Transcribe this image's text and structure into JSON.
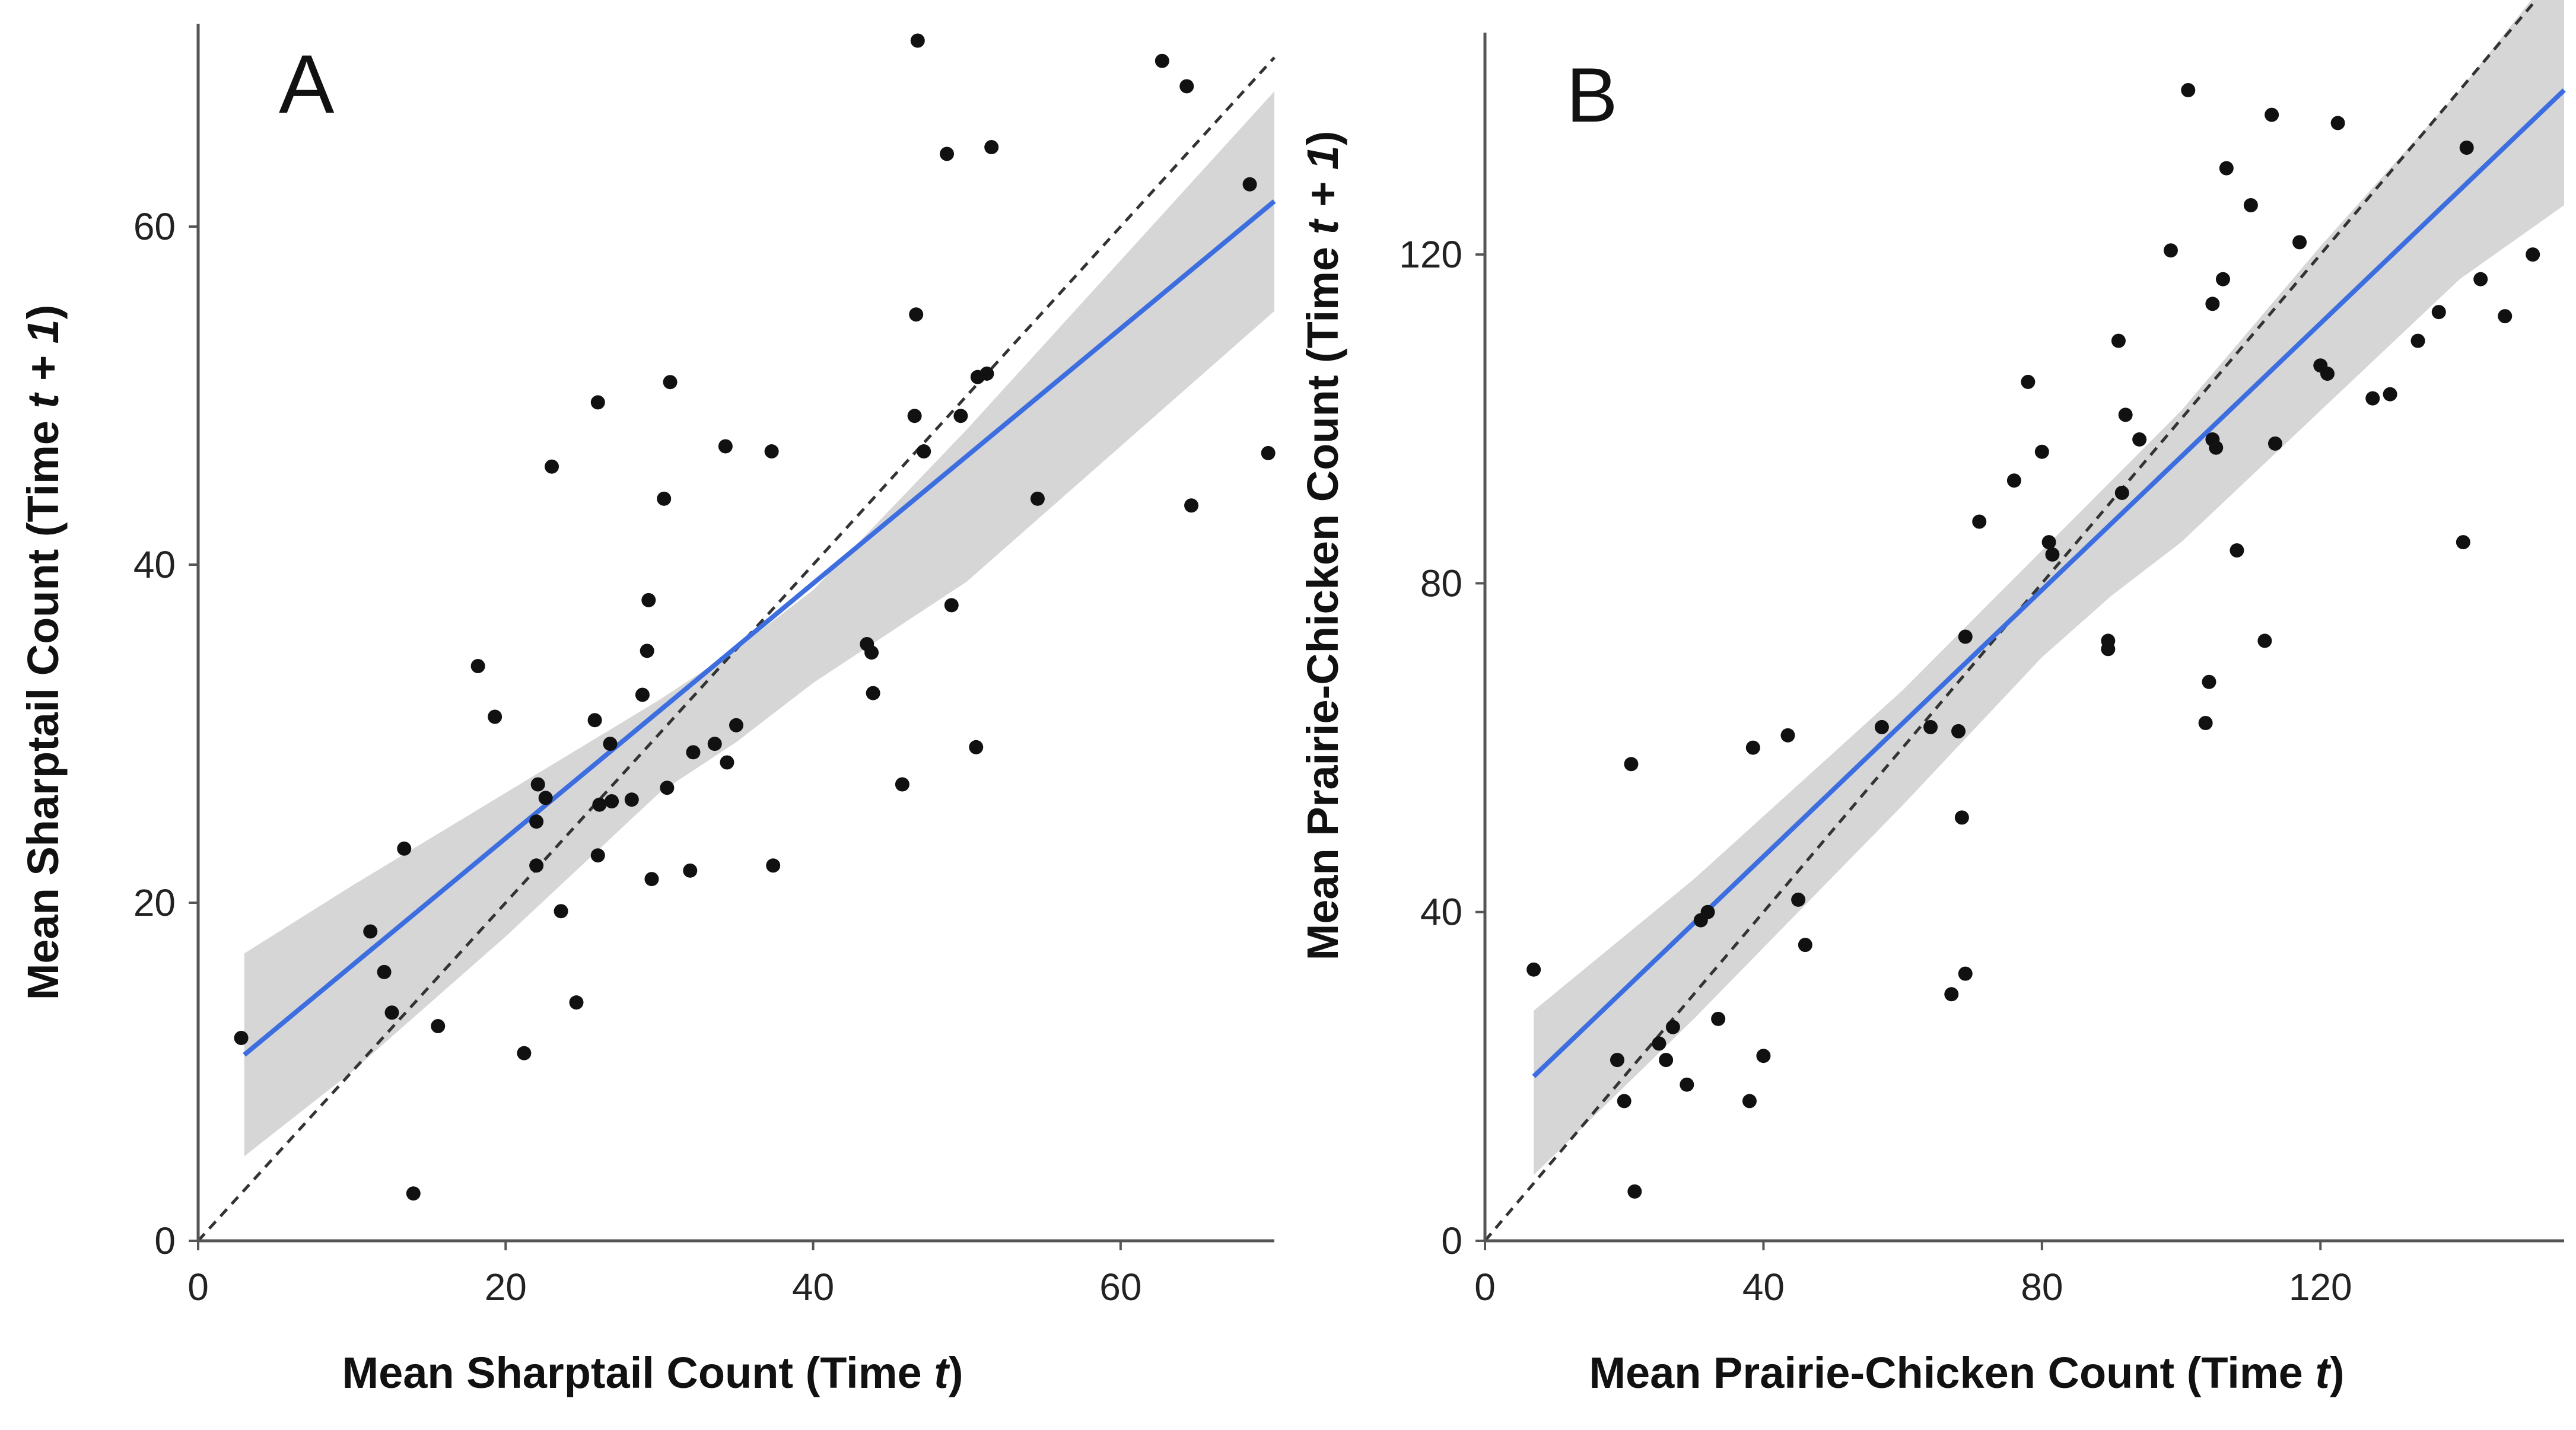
{
  "figure": {
    "panels_label": "Two-panel scatter figure"
  },
  "chart_data": [
    {
      "type": "scatter",
      "panel_label": "A",
      "title": "",
      "xlabel": "Mean Sharptail Count (Time t)",
      "xlabel_parts": [
        "Mean Sharptail Count (Time ",
        "t",
        ")"
      ],
      "ylabel": "Mean Sharptail Count (Time t + 1)",
      "ylabel_parts": [
        "Mean Sharptail Count (Time ",
        "t + 1",
        ")"
      ],
      "xlim": [
        0,
        70
      ],
      "ylim": [
        0,
        72
      ],
      "xticks": [
        0,
        20,
        40,
        60
      ],
      "yticks": [
        0,
        20,
        40,
        60
      ],
      "grid": false,
      "colors": {
        "points": "#111111",
        "fit": "#3d6ee0",
        "band": "#d6d6d6",
        "identity": "#333333",
        "axis": "#555555"
      },
      "fit_line": {
        "label": "linear fit",
        "x": [
          3,
          70
        ],
        "y": [
          11,
          61.5
        ]
      },
      "confidence_band": {
        "x": [
          3,
          10,
          20,
          30,
          35,
          40,
          50,
          60,
          70
        ],
        "upper": [
          17,
          21,
          26.5,
          32,
          35,
          38.5,
          48,
          58,
          68
        ],
        "lower": [
          5,
          10,
          18,
          26.5,
          29.5,
          33,
          39,
          47,
          55
        ]
      },
      "identity_line": {
        "label": "1:1 line",
        "x": [
          0,
          70
        ],
        "y": [
          0,
          70
        ]
      },
      "points": [
        [
          2.8,
          12.0
        ],
        [
          11.2,
          18.3
        ],
        [
          12.1,
          15.9
        ],
        [
          12.6,
          13.5
        ],
        [
          13.4,
          23.2
        ],
        [
          14.0,
          2.8
        ],
        [
          15.6,
          12.7
        ],
        [
          18.2,
          34.0
        ],
        [
          19.3,
          31.0
        ],
        [
          21.2,
          11.1
        ],
        [
          22.0,
          22.2
        ],
        [
          22.0,
          24.8
        ],
        [
          22.1,
          27.0
        ],
        [
          22.6,
          26.2
        ],
        [
          23.0,
          45.8
        ],
        [
          23.6,
          19.5
        ],
        [
          24.6,
          14.1
        ],
        [
          25.8,
          30.8
        ],
        [
          26.0,
          49.6
        ],
        [
          26.0,
          22.8
        ],
        [
          26.1,
          25.8
        ],
        [
          26.8,
          29.4
        ],
        [
          26.9,
          26.0
        ],
        [
          28.2,
          26.1
        ],
        [
          28.9,
          32.3
        ],
        [
          29.2,
          34.9
        ],
        [
          29.3,
          37.9
        ],
        [
          29.5,
          21.4
        ],
        [
          30.3,
          43.9
        ],
        [
          30.5,
          26.8
        ],
        [
          30.7,
          50.8
        ],
        [
          32.0,
          21.9
        ],
        [
          32.2,
          28.9
        ],
        [
          33.6,
          29.4
        ],
        [
          34.3,
          47.0
        ],
        [
          34.4,
          28.3
        ],
        [
          35.0,
          30.5
        ],
        [
          37.3,
          46.7
        ],
        [
          37.4,
          22.2
        ],
        [
          43.5,
          35.3
        ],
        [
          43.8,
          34.8
        ],
        [
          43.9,
          32.4
        ],
        [
          45.8,
          27.0
        ],
        [
          46.6,
          48.8
        ],
        [
          46.7,
          54.8
        ],
        [
          46.8,
          71.0
        ],
        [
          47.2,
          46.7
        ],
        [
          48.7,
          64.3
        ],
        [
          49.0,
          37.6
        ],
        [
          49.6,
          48.8
        ],
        [
          50.6,
          29.2
        ],
        [
          50.7,
          51.1
        ],
        [
          51.3,
          51.3
        ],
        [
          51.6,
          64.7
        ],
        [
          54.6,
          43.9
        ],
        [
          62.7,
          69.8
        ],
        [
          64.3,
          68.3
        ],
        [
          64.6,
          43.5
        ],
        [
          68.4,
          62.5
        ],
        [
          69.6,
          46.6
        ]
      ]
    },
    {
      "type": "scatter",
      "panel_label": "B",
      "title": "",
      "xlabel": "Mean Prairie-Chicken Count (Time t)",
      "xlabel_parts": [
        "Mean Prairie-Chicken Count (Time ",
        "t",
        ")"
      ],
      "ylabel": "Mean Prairie-Chicken Count (Time t + 1)",
      "ylabel_parts": [
        "Mean Prairie-Chicken Count (Time ",
        "t + 1",
        ")"
      ],
      "xlim": [
        0,
        155
      ],
      "ylim": [
        0,
        147
      ],
      "xticks": [
        0,
        40,
        80,
        120
      ],
      "yticks": [
        0,
        40,
        80,
        120
      ],
      "grid": false,
      "colors": {
        "points": "#111111",
        "fit": "#3d6ee0",
        "band": "#d6d6d6",
        "identity": "#333333",
        "axis": "#555555"
      },
      "fit_line": {
        "label": "linear fit",
        "x": [
          7,
          155
        ],
        "y": [
          20,
          140
        ]
      },
      "confidence_band": {
        "x": [
          7,
          30,
          60,
          80,
          90,
          100,
          120,
          140,
          155
        ],
        "upper": [
          28,
          44,
          67,
          84,
          92.5,
          101,
          121,
          140,
          156
        ],
        "lower": [
          8,
          27,
          53,
          71,
          78.5,
          85,
          101,
          117,
          126
        ]
      },
      "identity_line": {
        "label": "1:1 line",
        "x": [
          0,
          155
        ],
        "y": [
          0,
          155
        ]
      },
      "points": [
        [
          7.0,
          33.0
        ],
        [
          19.0,
          22.0
        ],
        [
          20.0,
          17.0
        ],
        [
          21.0,
          58.0
        ],
        [
          21.5,
          6.0
        ],
        [
          25.0,
          24.0
        ],
        [
          26.0,
          22.0
        ],
        [
          27.0,
          26.0
        ],
        [
          29.0,
          19.0
        ],
        [
          31.0,
          39.0
        ],
        [
          32.0,
          40.0
        ],
        [
          33.5,
          27.0
        ],
        [
          38.0,
          17.0
        ],
        [
          38.5,
          60.0
        ],
        [
          40.0,
          22.5
        ],
        [
          43.5,
          61.5
        ],
        [
          45.0,
          41.5
        ],
        [
          46.0,
          36.0
        ],
        [
          57.0,
          62.5
        ],
        [
          64.0,
          62.5
        ],
        [
          67.0,
          30.0
        ],
        [
          68.0,
          62.0
        ],
        [
          68.5,
          51.5
        ],
        [
          69.0,
          73.5
        ],
        [
          69.0,
          32.5
        ],
        [
          71.0,
          87.5
        ],
        [
          76.0,
          92.5
        ],
        [
          78.0,
          104.5
        ],
        [
          80.0,
          96.0
        ],
        [
          81.0,
          85.0
        ],
        [
          81.5,
          83.5
        ],
        [
          89.5,
          73.0
        ],
        [
          89.5,
          72.0
        ],
        [
          91.0,
          109.5
        ],
        [
          91.5,
          91.0
        ],
        [
          92.0,
          100.5
        ],
        [
          94.0,
          97.5
        ],
        [
          98.5,
          120.5
        ],
        [
          101.0,
          140.0
        ],
        [
          103.5,
          63.0
        ],
        [
          104.0,
          68.0
        ],
        [
          104.5,
          114.0
        ],
        [
          104.5,
          97.5
        ],
        [
          105.0,
          96.5
        ],
        [
          106.0,
          117.0
        ],
        [
          106.5,
          130.5
        ],
        [
          108.0,
          84.0
        ],
        [
          110.0,
          126.0
        ],
        [
          112.0,
          73.0
        ],
        [
          113.0,
          137.0
        ],
        [
          113.5,
          97.0
        ],
        [
          117.0,
          121.5
        ],
        [
          120.0,
          106.5
        ],
        [
          121.0,
          105.5
        ],
        [
          122.5,
          136.0
        ],
        [
          127.5,
          102.5
        ],
        [
          130.0,
          103.0
        ],
        [
          134.0,
          109.5
        ],
        [
          137.0,
          113.0
        ],
        [
          140.5,
          85.0
        ],
        [
          141.0,
          133.0
        ],
        [
          143.0,
          117.0
        ],
        [
          146.5,
          112.5
        ],
        [
          150.5,
          120.0
        ]
      ]
    }
  ]
}
